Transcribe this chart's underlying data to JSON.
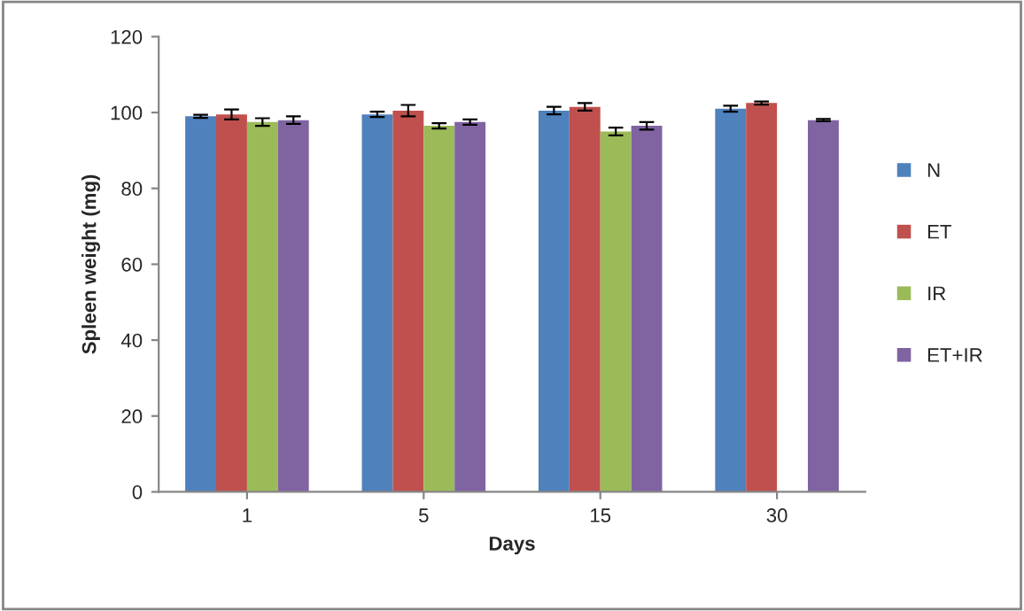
{
  "chart_data": {
    "type": "bar",
    "xlabel": "Days",
    "ylabel": "Spleen weight (mg)",
    "categories": [
      "1",
      "5",
      "15",
      "30"
    ],
    "series": [
      {
        "name": "N",
        "color": "#4f81bd",
        "values": [
          99,
          99.5,
          100.5,
          101
        ],
        "errors": [
          0.4,
          0.7,
          1,
          0.8
        ]
      },
      {
        "name": "ET",
        "color": "#c0504d",
        "values": [
          99.5,
          100.5,
          101.5,
          102.5
        ],
        "errors": [
          1.3,
          1.5,
          1,
          0.4
        ]
      },
      {
        "name": "IR",
        "color": "#9bbb59",
        "values": [
          97.5,
          96.5,
          95,
          null
        ],
        "errors": [
          1,
          0.7,
          1,
          null
        ]
      },
      {
        "name": "ET+IR",
        "color": "#8064a2",
        "values": [
          98,
          97.5,
          96.5,
          98
        ],
        "errors": [
          1,
          0.7,
          1,
          0.3
        ]
      }
    ],
    "ylim": [
      0,
      120
    ],
    "yticks": [
      0,
      20,
      40,
      60,
      80,
      100,
      120
    ],
    "grid": false,
    "legend": "right"
  }
}
